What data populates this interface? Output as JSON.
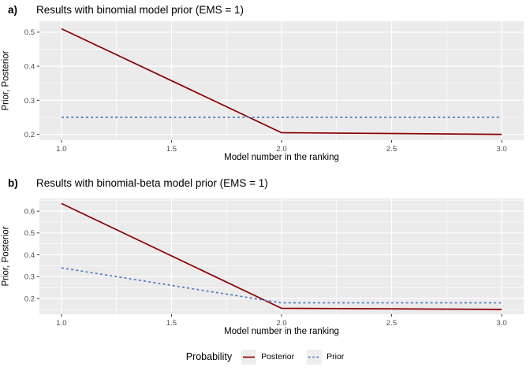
{
  "colors": {
    "panel_background": "#EBEBEB",
    "gridline": "#FFFFFF",
    "tick_label": "#4D4D4D",
    "tick_mark": "#333333",
    "axis_title": "#000000",
    "posterior_line": "#8B0000",
    "prior_line": "#507DBE",
    "legend_key_background": "#EFEFEF"
  },
  "legend": {
    "title": "Probability",
    "position": "bottom",
    "entries": [
      {
        "label": "Posterior",
        "color": "#8B0000",
        "linestyle": "solid"
      },
      {
        "label": "Prior",
        "color": "#507DBE",
        "linestyle": "dashed"
      }
    ]
  },
  "chart_data": [
    {
      "type": "line",
      "panel_label": "a)",
      "title": "Results with binomial model prior (EMS = 1)",
      "xlabel": "Model number in the ranking",
      "ylabel": "Prior, Posterior",
      "x": [
        1,
        2,
        3
      ],
      "series": [
        {
          "name": "Posterior",
          "values": [
            0.51,
            0.205,
            0.2
          ],
          "color": "#8B0000",
          "linestyle": "solid"
        },
        {
          "name": "Prior",
          "values": [
            0.25,
            0.25,
            0.25
          ],
          "color": "#507DBE",
          "linestyle": "dashed"
        }
      ],
      "xlim": [
        0.9,
        3.1
      ],
      "ylim": [
        0.183,
        0.532
      ],
      "xticks": [
        1.0,
        1.5,
        2.0,
        2.5,
        3.0
      ],
      "xtick_labels": [
        "1.0",
        "1.5",
        "2.0",
        "2.5",
        "3.0"
      ],
      "yticks": [
        0.2,
        0.3,
        0.4,
        0.5
      ],
      "ytick_labels": [
        "0.2",
        "0.3",
        "0.4",
        "0.5"
      ],
      "grid": true,
      "legend_position": "bottom"
    },
    {
      "type": "line",
      "panel_label": "b)",
      "title": "Results with binomial-beta model prior (EMS = 1)",
      "xlabel": "Model number in the ranking",
      "ylabel": "Prior, Posterior",
      "x": [
        1,
        2,
        3
      ],
      "series": [
        {
          "name": "Posterior",
          "values": [
            0.635,
            0.155,
            0.15
          ],
          "color": "#8B0000",
          "linestyle": "solid"
        },
        {
          "name": "Prior",
          "values": [
            0.34,
            0.18,
            0.18
          ],
          "color": "#507DBE",
          "linestyle": "dashed"
        }
      ],
      "xlim": [
        0.9,
        3.1
      ],
      "ylim": [
        0.128,
        0.658
      ],
      "xticks": [
        1.0,
        1.5,
        2.0,
        2.5,
        3.0
      ],
      "xtick_labels": [
        "1.0",
        "1.5",
        "2.0",
        "2.5",
        "3.0"
      ],
      "yticks": [
        0.2,
        0.3,
        0.4,
        0.5,
        0.6
      ],
      "ytick_labels": [
        "0.2",
        "0.3",
        "0.4",
        "0.5",
        "0.6"
      ],
      "grid": true,
      "legend_position": "bottom"
    }
  ]
}
